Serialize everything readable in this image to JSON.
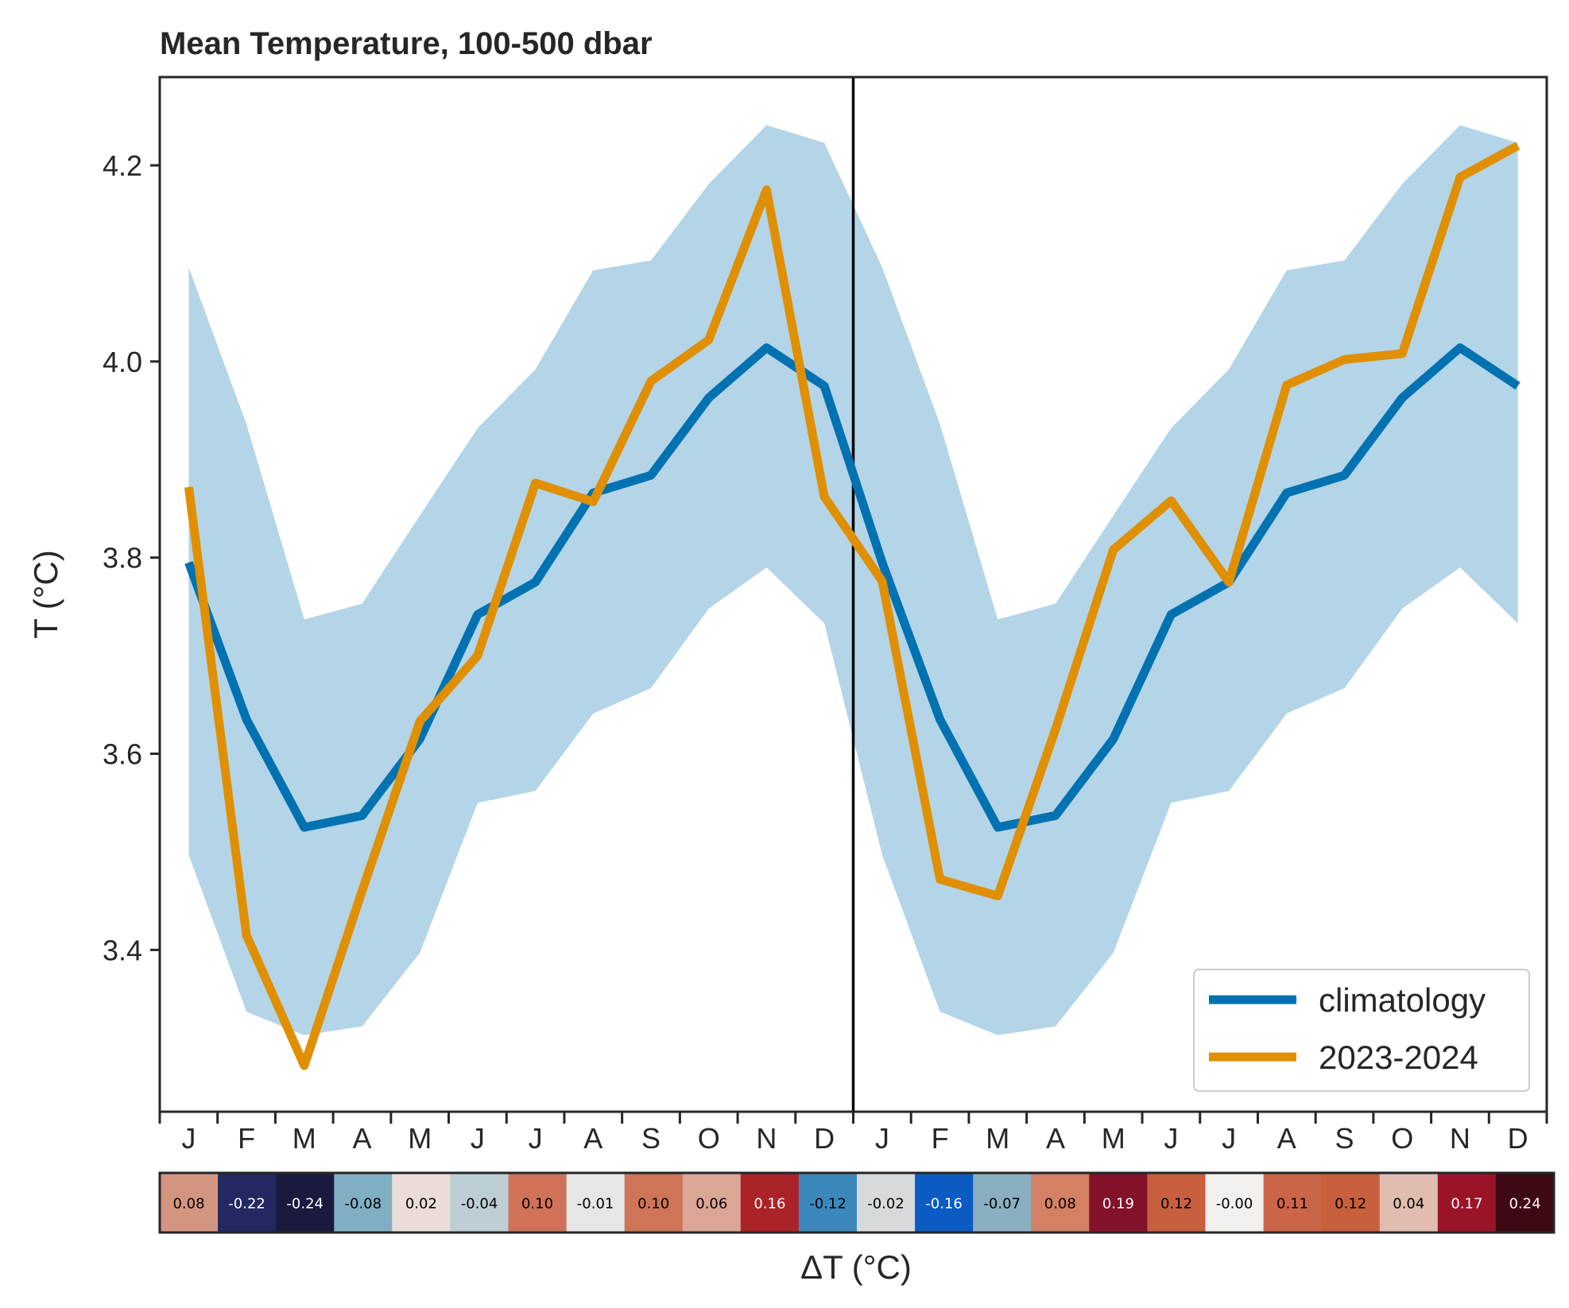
{
  "chart_data": {
    "type": "line",
    "title": "Mean Temperature, 100-500 dbar",
    "ylabel": "T (°C)",
    "xlabel": "ΔT (°C)",
    "ylim": [
      3.235,
      4.29
    ],
    "yticks": [
      3.4,
      3.6,
      3.8,
      4.0,
      4.2
    ],
    "categories": [
      "J",
      "F",
      "M",
      "A",
      "M",
      "J",
      "J",
      "A",
      "S",
      "O",
      "N",
      "D",
      "J",
      "F",
      "M",
      "A",
      "M",
      "J",
      "J",
      "A",
      "S",
      "O",
      "N",
      "D"
    ],
    "series": [
      {
        "name": "climatology",
        "color": "#0072b2",
        "values": [
          3.795,
          3.635,
          3.525,
          3.537,
          3.615,
          3.742,
          3.775,
          3.866,
          3.884,
          3.963,
          4.014,
          3.975,
          3.795,
          3.635,
          3.525,
          3.537,
          3.615,
          3.742,
          3.775,
          3.866,
          3.884,
          3.963,
          4.014,
          3.975
        ]
      },
      {
        "name": "2023-2024",
        "color": "#e08f00",
        "values": [
          3.872,
          3.415,
          3.282,
          3.46,
          3.633,
          3.7,
          3.876,
          3.857,
          3.98,
          4.022,
          4.175,
          3.862,
          3.776,
          3.472,
          3.455,
          3.625,
          3.808,
          3.858,
          3.775,
          3.976,
          4.002,
          4.008,
          4.188,
          4.22
        ]
      }
    ],
    "band": {
      "color": "#b3d5e7",
      "upper": [
        4.096,
        3.936,
        3.737,
        3.753,
        3.843,
        3.932,
        3.992,
        4.093,
        4.103,
        4.181,
        4.241,
        4.223,
        4.096,
        3.936,
        3.737,
        3.753,
        3.843,
        3.932,
        3.992,
        4.093,
        4.103,
        4.181,
        4.241,
        4.223
      ],
      "lower": [
        3.497,
        3.337,
        3.313,
        3.322,
        3.397,
        3.55,
        3.562,
        3.641,
        3.667,
        3.748,
        3.79,
        3.733,
        3.497,
        3.337,
        3.313,
        3.322,
        3.397,
        3.55,
        3.562,
        3.641,
        3.667,
        3.748,
        3.79,
        3.733
      ]
    },
    "divider_after_index": 11,
    "legend_position": "lower right",
    "grid": false,
    "anomaly": {
      "labels": [
        "0.08",
        "-0.22",
        "-0.24",
        "-0.08",
        "0.02",
        "-0.04",
        "0.10",
        "-0.01",
        "0.10",
        "0.06",
        "0.16",
        "-0.12",
        "-0.02",
        "-0.16",
        "-0.07",
        "0.08",
        "0.19",
        "0.12",
        "-0.00",
        "0.11",
        "0.12",
        "0.04",
        "0.17",
        "0.24"
      ],
      "colors": [
        "#d39580",
        "#232862",
        "#1a1a3f",
        "#80afc3",
        "#ecdcd7",
        "#bdced5",
        "#cf7257",
        "#e6e6e6",
        "#ce7557",
        "#dba695",
        "#ab2328",
        "#3c88bd",
        "#d7dadd",
        "#0b5bc2",
        "#8aafc1",
        "#d38063",
        "#83112a",
        "#c8603f",
        "#f4efef",
        "#cb6548",
        "#c8603e",
        "#e1bdb0",
        "#9a1428",
        "#3f0914"
      ],
      "text_colors": [
        "#000000",
        "#ffffff",
        "#ffffff",
        "#000000",
        "#000000",
        "#000000",
        "#000000",
        "#000000",
        "#000000",
        "#000000",
        "#ffffff",
        "#000000",
        "#000000",
        "#ffffff",
        "#000000",
        "#000000",
        "#ffffff",
        "#000000",
        "#000000",
        "#000000",
        "#000000",
        "#000000",
        "#ffffff",
        "#ffffff"
      ]
    }
  }
}
